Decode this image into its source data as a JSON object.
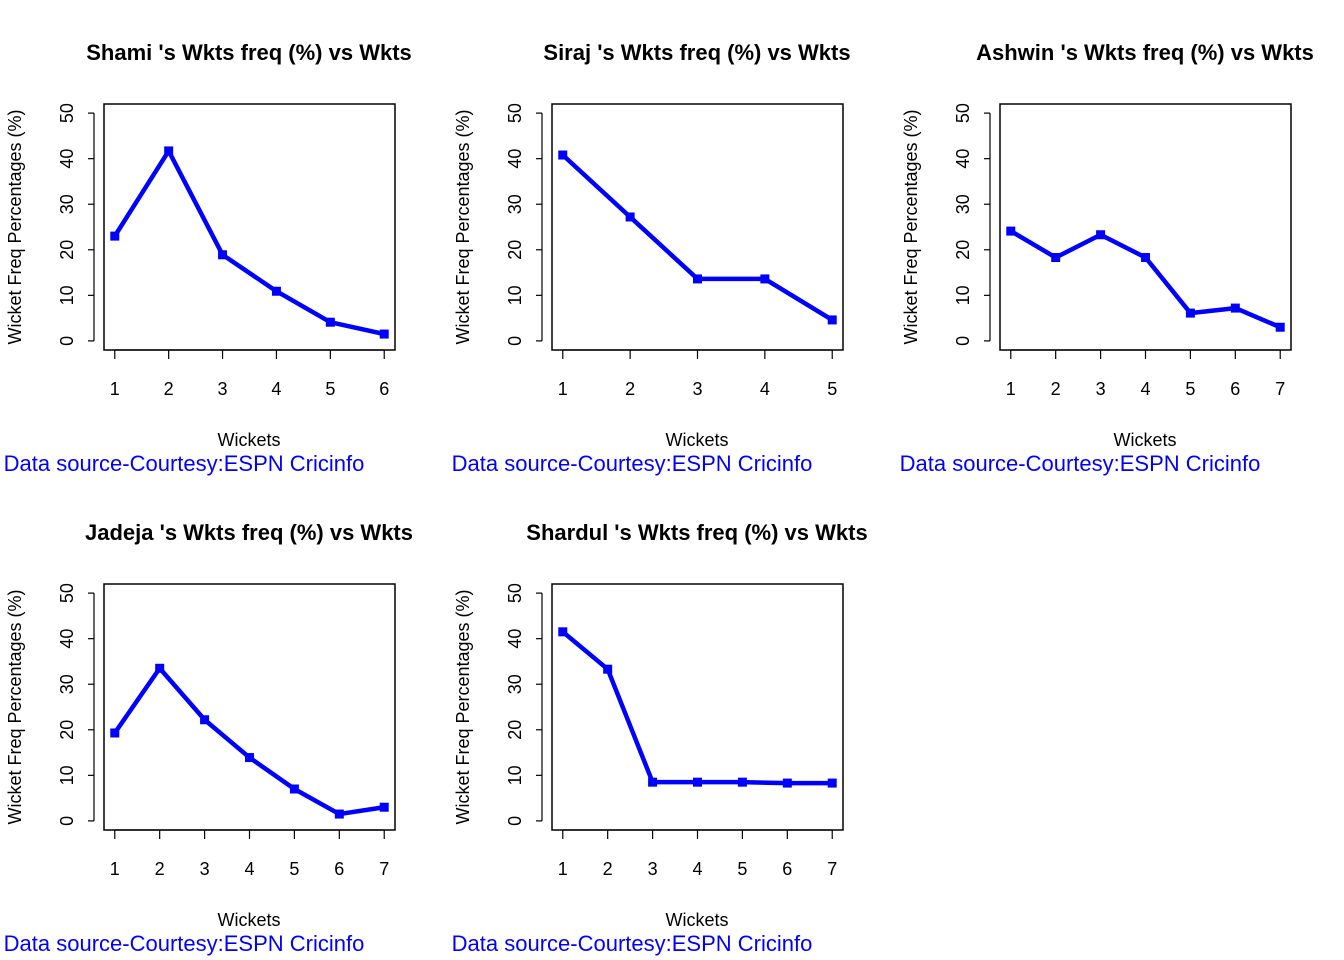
{
  "chart_data": [
    {
      "type": "line",
      "title": "Shami 's Wkts freq (%) vs Wkts",
      "x_label": "Wickets",
      "y_label": "Wicket Freq Percentages (%)",
      "annotation": "Data source-Courtesy:ESPN Cricinfo",
      "x": [
        1,
        2,
        3,
        4,
        5,
        6
      ],
      "values": [
        23,
        41.7,
        18.9,
        10.9,
        4.1,
        1.5
      ],
      "color": "#0000ff",
      "xlim": [
        0.8,
        6.2
      ],
      "ylim": [
        -2,
        52
      ],
      "xticks": [
        1,
        2,
        3,
        4,
        5,
        6
      ],
      "yticks": [
        0,
        10,
        20,
        30,
        40,
        50
      ]
    },
    {
      "type": "line",
      "title": "Siraj 's Wkts freq (%) vs Wkts",
      "x_label": "Wickets",
      "y_label": "Wicket Freq Percentages (%)",
      "annotation": "Data source-Courtesy:ESPN Cricinfo",
      "x": [
        1,
        2,
        3,
        4,
        5
      ],
      "values": [
        40.8,
        27.2,
        13.6,
        13.6,
        4.6
      ],
      "color": "#0000ff",
      "xlim": [
        0.84,
        5.16
      ],
      "ylim": [
        -2,
        52
      ],
      "xticks": [
        1,
        2,
        3,
        4,
        5
      ],
      "yticks": [
        0,
        10,
        20,
        30,
        40,
        50
      ]
    },
    {
      "type": "line",
      "title": "Ashwin 's Wkts freq (%) vs Wkts",
      "x_label": "Wickets",
      "y_label": "Wicket Freq Percentages (%)",
      "annotation": "Data source-Courtesy:ESPN Cricinfo",
      "x": [
        1,
        2,
        3,
        4,
        5,
        6,
        7
      ],
      "values": [
        24.1,
        18.3,
        23.3,
        18.3,
        6.1,
        7.2,
        3.0
      ],
      "color": "#0000ff",
      "xlim": [
        0.76,
        7.24
      ],
      "ylim": [
        -2,
        52
      ],
      "xticks": [
        1,
        2,
        3,
        4,
        5,
        6,
        7
      ],
      "yticks": [
        0,
        10,
        20,
        30,
        40,
        50
      ]
    },
    {
      "type": "line",
      "title": "Jadeja 's Wkts freq (%) vs Wkts",
      "x_label": "Wickets",
      "y_label": "Wicket Freq Percentages (%)",
      "annotation": "Data source-Courtesy:ESPN Cricinfo",
      "x": [
        1,
        2,
        3,
        4,
        5,
        6,
        7
      ],
      "values": [
        19.3,
        33.5,
        22.2,
        13.9,
        7.0,
        1.5,
        3.0
      ],
      "color": "#0000ff",
      "xlim": [
        0.76,
        7.24
      ],
      "ylim": [
        -2,
        52
      ],
      "xticks": [
        1,
        2,
        3,
        4,
        5,
        6,
        7
      ],
      "yticks": [
        0,
        10,
        20,
        30,
        40,
        50
      ]
    },
    {
      "type": "line",
      "title": "Shardul 's Wkts freq (%) vs Wkts",
      "x_label": "Wickets",
      "y_label": "Wicket Freq Percentages (%)",
      "annotation": "Data source-Courtesy:ESPN Cricinfo",
      "x": [
        1,
        2,
        3,
        4,
        5,
        6,
        7
      ],
      "values": [
        41.5,
        33.3,
        8.5,
        8.5,
        8.5,
        8.3,
        8.3
      ],
      "color": "#0000ff",
      "xlim": [
        0.76,
        7.24
      ],
      "ylim": [
        -2,
        52
      ],
      "xticks": [
        1,
        2,
        3,
        4,
        5,
        6,
        7
      ],
      "yticks": [
        0,
        10,
        20,
        30,
        40,
        50
      ]
    }
  ]
}
